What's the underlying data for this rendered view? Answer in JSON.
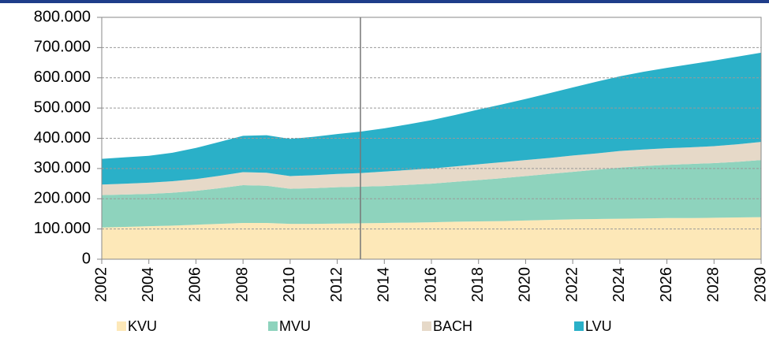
{
  "chart_data": {
    "type": "stacked_area",
    "x": [
      2002,
      2003,
      2004,
      2005,
      2006,
      2007,
      2008,
      2009,
      2010,
      2011,
      2012,
      2013,
      2014,
      2015,
      2016,
      2017,
      2018,
      2019,
      2020,
      2021,
      2022,
      2023,
      2024,
      2025,
      2026,
      2027,
      2028,
      2029,
      2030
    ],
    "series": [
      {
        "name": "KVU",
        "color": "#fde8b8",
        "values": [
          105000,
          107000,
          109000,
          111000,
          114000,
          117000,
          120000,
          120000,
          117000,
          117000,
          118000,
          119000,
          120000,
          121000,
          122000,
          124000,
          125000,
          126000,
          128000,
          130000,
          132000,
          133000,
          134000,
          135000,
          136000,
          136000,
          137000,
          138000,
          139000
        ]
      },
      {
        "name": "MVU",
        "color": "#8ed3bd",
        "values": [
          107000,
          107000,
          107000,
          109000,
          112000,
          118000,
          125000,
          123000,
          116000,
          118000,
          120000,
          121000,
          122000,
          125000,
          128000,
          132000,
          137000,
          142000,
          147000,
          152000,
          157000,
          163000,
          169000,
          173000,
          176000,
          179000,
          181000,
          184000,
          189000
        ]
      },
      {
        "name": "BACH",
        "color": "#e6d9c8",
        "values": [
          35000,
          36000,
          37000,
          38000,
          39000,
          41000,
          43000,
          43000,
          42000,
          43000,
          44000,
          45000,
          48000,
          49000,
          50000,
          51000,
          52000,
          53000,
          53000,
          53000,
          54000,
          54000,
          55000,
          55000,
          55000,
          55000,
          56000,
          58000,
          60000
        ]
      },
      {
        "name": "LVU",
        "color": "#2ab0c8",
        "values": [
          85000,
          87000,
          89000,
          94000,
          103000,
          112000,
          120000,
          124000,
          123000,
          127000,
          132000,
          137000,
          143000,
          151000,
          160000,
          170000,
          181000,
          191000,
          202000,
          214000,
          225000,
          237000,
          247000,
          257000,
          266000,
          275000,
          283000,
          290000,
          295000
        ]
      }
    ],
    "xlim": [
      2002,
      2030
    ],
    "xticks": [
      2002,
      2004,
      2006,
      2008,
      2010,
      2012,
      2014,
      2016,
      2018,
      2020,
      2022,
      2024,
      2026,
      2028,
      2030
    ],
    "ylim": [
      0,
      800000
    ],
    "yticks": [
      0,
      {
        "value": 100000,
        "label": "100.000"
      },
      {
        "value": 200000,
        "label": "200.000"
      },
      {
        "value": 300000,
        "label": "300.000"
      },
      {
        "value": 400000,
        "label": "400.000"
      },
      {
        "value": 500000,
        "label": "500.000"
      },
      {
        "value": 600000,
        "label": "600.000"
      },
      {
        "value": 700000,
        "label": "700.000"
      },
      {
        "value": 800000,
        "label": "800.000"
      }
    ],
    "grid": true,
    "legend": "bottom"
  }
}
